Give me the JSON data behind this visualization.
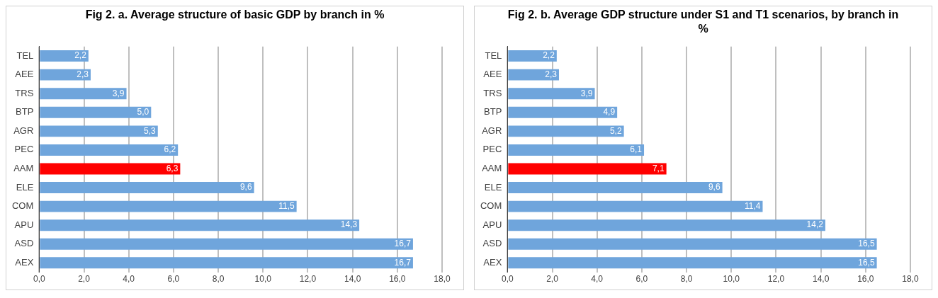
{
  "chart_data": [
    {
      "type": "bar",
      "orientation": "horizontal",
      "title": "Fig 2. a. Average structure of basic GDP by branch in %",
      "categories": [
        "TEL",
        "AEE",
        "TRS",
        "BTP",
        "AGR",
        "PEC",
        "AAM",
        "ELE",
        "COM",
        "APU",
        "ASD",
        "AEX"
      ],
      "values": [
        2.2,
        2.3,
        3.9,
        5.0,
        5.3,
        6.2,
        6.3,
        9.6,
        11.5,
        14.3,
        16.7,
        16.7
      ],
      "colors": [
        "#6fa5dc",
        "#6fa5dc",
        "#6fa5dc",
        "#6fa5dc",
        "#6fa5dc",
        "#6fa5dc",
        "#ff0000",
        "#6fa5dc",
        "#6fa5dc",
        "#6fa5dc",
        "#6fa5dc",
        "#6fa5dc"
      ],
      "value_labels": [
        "2,2",
        "2,3",
        "3,9",
        "5,0",
        "5,3",
        "6,2",
        "6,3",
        "9,6",
        "11,5",
        "14,3",
        "16,7",
        "16,7"
      ],
      "xlim": [
        0,
        18
      ],
      "xticks": [
        {
          "value": 0,
          "label": "0,0"
        },
        {
          "value": 2,
          "label": "2,0"
        },
        {
          "value": 4,
          "label": "4,0"
        },
        {
          "value": 6,
          "label": "6,0"
        },
        {
          "value": 8,
          "label": "8,0"
        },
        {
          "value": 10,
          "label": "10,0"
        },
        {
          "value": 12,
          "label": "12,0"
        },
        {
          "value": 14,
          "label": "14,0"
        },
        {
          "value": 16,
          "label": "16,0"
        },
        {
          "value": 18,
          "label": "18,0"
        }
      ],
      "grid": "x"
    },
    {
      "type": "bar",
      "orientation": "horizontal",
      "title": "Fig 2. b. Average GDP structure under S1 and T1 scenarios, by branch in %",
      "categories": [
        "TEL",
        "AEE",
        "TRS",
        "BTP",
        "AGR",
        "PEC",
        "AAM",
        "ELE",
        "COM",
        "APU",
        "ASD",
        "AEX"
      ],
      "values": [
        2.2,
        2.3,
        3.9,
        4.9,
        5.2,
        6.1,
        7.1,
        9.6,
        11.4,
        14.2,
        16.5,
        16.5
      ],
      "colors": [
        "#6fa5dc",
        "#6fa5dc",
        "#6fa5dc",
        "#6fa5dc",
        "#6fa5dc",
        "#6fa5dc",
        "#ff0000",
        "#6fa5dc",
        "#6fa5dc",
        "#6fa5dc",
        "#6fa5dc",
        "#6fa5dc"
      ],
      "value_labels": [
        "2,2",
        "2,3",
        "3,9",
        "4,9",
        "5,2",
        "6,1",
        "7,1",
        "9,6",
        "11,4",
        "14,2",
        "16,5",
        "16,5"
      ],
      "xlim": [
        0,
        18
      ],
      "xticks": [
        {
          "value": 0,
          "label": "0,0"
        },
        {
          "value": 2,
          "label": "2,0"
        },
        {
          "value": 4,
          "label": "4,0"
        },
        {
          "value": 6,
          "label": "6,0"
        },
        {
          "value": 8,
          "label": "8,0"
        },
        {
          "value": 10,
          "label": "10,0"
        },
        {
          "value": 12,
          "label": "12,0"
        },
        {
          "value": 14,
          "label": "14,0"
        },
        {
          "value": 16,
          "label": "16,0"
        },
        {
          "value": 18,
          "label": "18,0"
        }
      ],
      "grid": "x"
    }
  ]
}
